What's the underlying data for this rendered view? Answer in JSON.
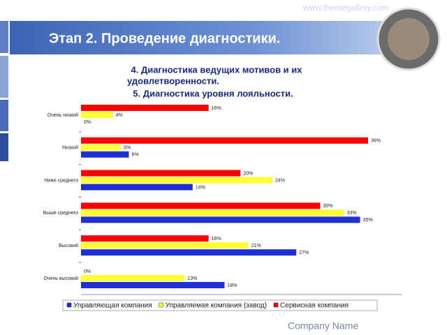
{
  "chart_data": {
    "type": "bar",
    "orientation": "horizontal",
    "title": "Этап 2. Проведение диагностики.",
    "subtitle": [
      "4. Диагностика ведущих мотивов и их",
      "удовлетворенности.",
      "5. Диагностика уровня лояльности."
    ],
    "watermark": "www.themegallery.com",
    "footer": "Company Name",
    "categories": [
      "Очень низкий",
      "Низкий",
      "Ниже среднего",
      "Выше среднего",
      "Высокий",
      "Очень высокий"
    ],
    "series": [
      {
        "name": "Управляющая компания",
        "color": "#1f2fd6",
        "values": [
          0,
          6,
          14,
          35,
          27,
          18
        ],
        "value_labels": [
          "0%",
          "6%",
          "14%",
          "35%",
          "27%",
          "18%"
        ]
      },
      {
        "name": "Управляемая компания (завод)",
        "color": "#ffff33",
        "values": [
          4,
          5,
          24,
          33,
          21,
          13
        ],
        "value_labels": [
          "4%",
          "5%",
          "24%",
          "33%",
          "21%",
          "13%"
        ]
      },
      {
        "name": "Сервисная компания",
        "color": "#ff0000",
        "values": [
          16,
          36,
          20,
          30,
          16,
          0
        ],
        "value_labels": [
          "16%",
          "36%",
          "20%",
          "30%",
          "16%",
          "0%"
        ]
      }
    ],
    "legend": "bottom"
  }
}
